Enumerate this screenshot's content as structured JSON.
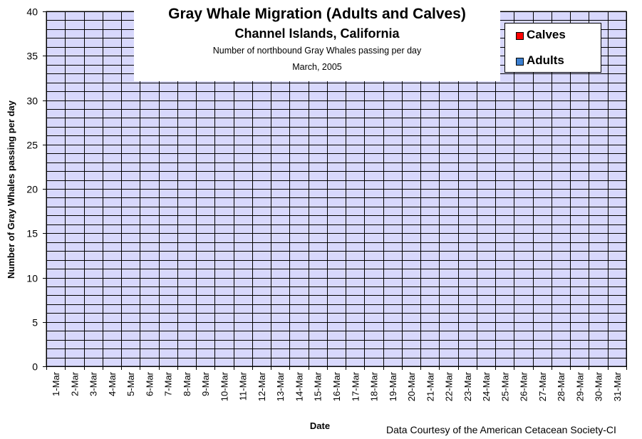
{
  "chart_data": {
    "type": "bar",
    "title": "Gray Whale Migration (Adults and Calves)",
    "subtitle": "Channel Islands, California",
    "subtitle2": "Number of northbound Gray Whales passing per day",
    "subtitle3": "March, 2005",
    "xlabel": "Date",
    "ylabel": "Number of Gray Whales passing per day",
    "ylim": [
      0,
      40
    ],
    "y_ticks": [
      0,
      5,
      10,
      15,
      20,
      25,
      30,
      35,
      40
    ],
    "y_minor_step": 1,
    "grid": true,
    "stacked": true,
    "categories": [
      "1-Mar",
      "2-Mar",
      "3-Mar",
      "4-Mar",
      "5-Mar",
      "6-Mar",
      "7-Mar",
      "8-Mar",
      "9-Mar",
      "10-Mar",
      "11-Mar",
      "12-Mar",
      "13-Mar",
      "14-Mar",
      "15-Mar",
      "16-Mar",
      "17-Mar",
      "18-Mar",
      "19-Mar",
      "20-Mar",
      "21-Mar",
      "22-Mar",
      "23-Mar",
      "24-Mar",
      "25-Mar",
      "26-Mar",
      "27-Mar",
      "28-Mar",
      "29-Mar",
      "30-Mar",
      "31-Mar"
    ],
    "series": [
      {
        "name": "Adults",
        "color": "#3b7fd0",
        "values": [
          0,
          0,
          0,
          0,
          0,
          0,
          0,
          0,
          0,
          0,
          0,
          0,
          0,
          0,
          0,
          0,
          0,
          0,
          0,
          0,
          0,
          0,
          0,
          0,
          0,
          0,
          0,
          0,
          0,
          0,
          0
        ]
      },
      {
        "name": "Calves",
        "color": "#ff0000",
        "values": [
          0,
          0,
          0,
          0,
          0,
          0,
          0,
          0,
          0,
          0,
          0,
          0,
          0,
          0,
          0,
          0,
          0,
          0,
          0,
          0,
          0,
          0,
          0,
          0,
          0,
          0,
          0,
          0,
          0,
          0,
          0
        ]
      }
    ],
    "legend": [
      "Calves",
      "Adults"
    ],
    "legend_position": "top-right",
    "plot_background": "#d8d8fc",
    "credit": "Data Courtesy of the American Cetacean Society-CI"
  }
}
